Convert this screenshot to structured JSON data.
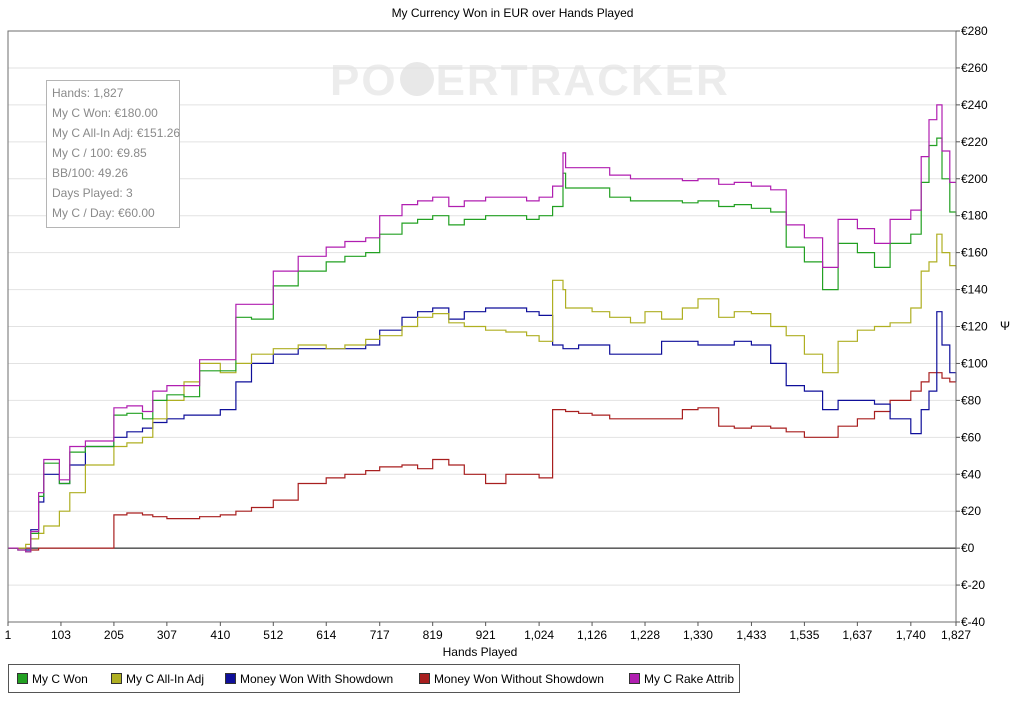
{
  "chart_data": {
    "type": "line",
    "title": "My Currency Won in EUR over Hands Played",
    "xlabel": "Hands Played",
    "ylabel": "",
    "y_axis_symbol": "Ψ",
    "xlim": [
      1,
      1827
    ],
    "ylim": [
      -40,
      280
    ],
    "x_ticks": [
      1,
      103,
      205,
      307,
      410,
      512,
      614,
      717,
      819,
      921,
      1024,
      1126,
      1228,
      1330,
      1433,
      1535,
      1637,
      1740,
      1827
    ],
    "x_tick_labels": [
      "1",
      "103",
      "205",
      "307",
      "410",
      "512",
      "614",
      "717",
      "819",
      "921",
      "1,024",
      "1,126",
      "1,228",
      "1,330",
      "1,433",
      "1,535",
      "1,637",
      "1,740",
      "1,827"
    ],
    "y_ticks": [
      -40,
      -20,
      0,
      20,
      40,
      60,
      80,
      100,
      120,
      140,
      160,
      180,
      200,
      220,
      240,
      260,
      280
    ],
    "y_tick_labels": [
      "€-40",
      "€-20",
      "€0",
      "€20",
      "€40",
      "€60",
      "€80",
      "€100",
      "€120",
      "€140",
      "€160",
      "€180",
      "€200",
      "€220",
      "€240",
      "€260",
      "€280"
    ],
    "grid": true,
    "legend_position": "bottom-left",
    "x": [
      1,
      20,
      35,
      45,
      60,
      70,
      100,
      120,
      150,
      205,
      230,
      260,
      280,
      307,
      340,
      370,
      410,
      440,
      470,
      512,
      560,
      614,
      650,
      690,
      717,
      760,
      790,
      819,
      850,
      880,
      921,
      960,
      1000,
      1024,
      1050,
      1070,
      1075,
      1100,
      1126,
      1160,
      1200,
      1228,
      1260,
      1300,
      1330,
      1370,
      1400,
      1433,
      1470,
      1500,
      1535,
      1570,
      1600,
      1637,
      1670,
      1700,
      1740,
      1760,
      1775,
      1790,
      1800,
      1815,
      1827
    ],
    "series": [
      {
        "name": "My C Won",
        "color": "#22a022",
        "values": [
          0,
          -1,
          -2,
          8,
          28,
          46,
          35,
          52,
          55,
          72,
          73,
          70,
          80,
          83,
          82,
          96,
          96,
          125,
          124,
          142,
          150,
          155,
          158,
          160,
          170,
          176,
          178,
          180,
          175,
          178,
          180,
          180,
          178,
          180,
          185,
          203,
          195,
          195,
          195,
          190,
          188,
          188,
          188,
          187,
          188,
          185,
          186,
          184,
          182,
          163,
          155,
          140,
          165,
          160,
          152,
          165,
          170,
          198,
          218,
          222,
          200,
          182,
          180
        ]
      },
      {
        "name": "My C All-In Adj",
        "color": "#afaf22",
        "values": [
          0,
          0,
          2,
          5,
          8,
          12,
          20,
          30,
          45,
          55,
          57,
          60,
          70,
          80,
          90,
          100,
          95,
          100,
          105,
          108,
          110,
          108,
          110,
          113,
          115,
          120,
          125,
          127,
          122,
          120,
          118,
          117,
          115,
          112,
          145,
          140,
          130,
          130,
          128,
          125,
          122,
          128,
          124,
          130,
          135,
          125,
          128,
          127,
          120,
          115,
          105,
          95,
          112,
          118,
          120,
          122,
          130,
          150,
          155,
          170,
          160,
          153,
          151
        ]
      },
      {
        "name": "Money Won With Showdown",
        "color": "#0f0f9a",
        "values": [
          0,
          0,
          -1,
          10,
          25,
          40,
          35,
          45,
          55,
          60,
          63,
          65,
          68,
          70,
          72,
          72,
          75,
          90,
          100,
          105,
          108,
          108,
          108,
          110,
          118,
          125,
          128,
          130,
          124,
          128,
          130,
          130,
          128,
          126,
          110,
          108,
          108,
          110,
          110,
          105,
          105,
          105,
          112,
          112,
          110,
          110,
          112,
          110,
          100,
          88,
          85,
          75,
          80,
          80,
          78,
          70,
          62,
          75,
          85,
          128,
          110,
          95,
          90
        ]
      },
      {
        "name": "Money Won Without Showdown",
        "color": "#a81f1f",
        "values": [
          0,
          0,
          0,
          -1,
          0,
          0,
          0,
          0,
          0,
          18,
          19,
          18,
          17,
          16,
          16,
          17,
          18,
          20,
          22,
          26,
          35,
          38,
          40,
          42,
          44,
          45,
          43,
          48,
          45,
          40,
          35,
          40,
          40,
          38,
          75,
          75,
          74,
          73,
          72,
          70,
          70,
          70,
          70,
          75,
          76,
          66,
          65,
          66,
          65,
          63,
          60,
          60,
          66,
          70,
          74,
          80,
          85,
          90,
          95,
          95,
          92,
          90,
          90
        ]
      },
      {
        "name": "My C Rake Attrib",
        "color": "#b01eb0",
        "values": [
          0,
          -1,
          -2,
          9,
          30,
          48,
          37,
          55,
          58,
          76,
          77,
          74,
          85,
          88,
          88,
          102,
          102,
          132,
          132,
          150,
          158,
          163,
          166,
          168,
          180,
          186,
          188,
          190,
          185,
          188,
          190,
          190,
          188,
          190,
          196,
          214,
          206,
          206,
          206,
          202,
          200,
          200,
          200,
          199,
          200,
          197,
          198,
          196,
          194,
          175,
          168,
          152,
          178,
          173,
          165,
          178,
          183,
          212,
          232,
          240,
          215,
          198,
          198
        ]
      }
    ]
  },
  "stats": {
    "hands": "Hands: 1,827",
    "won": "My C Won: €180.00",
    "all_in_adj": "My C All-In Adj: €151.26",
    "per_100": "My C / 100: €9.85",
    "bb_100": "BB/100: 49.26",
    "days_played": "Days Played: 3",
    "per_day": "My C / Day: €60.00"
  },
  "watermark": "POKERTRACKER",
  "legend": [
    {
      "label": "My C Won",
      "color": "#22a022"
    },
    {
      "label": "My C All-In Adj",
      "color": "#afaf22"
    },
    {
      "label": "Money Won With Showdown",
      "color": "#0f0f9a"
    },
    {
      "label": "Money Won Without Showdown",
      "color": "#a81f1f"
    },
    {
      "label": "My C Rake Attrib",
      "color": "#b01eb0"
    }
  ]
}
